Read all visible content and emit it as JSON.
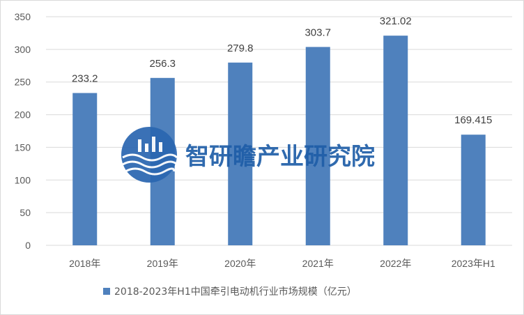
{
  "chart_data": {
    "type": "bar",
    "title": "",
    "xlabel": "",
    "ylabel": "",
    "categories": [
      "2018年",
      "2019年",
      "2020年",
      "2021年",
      "2022年",
      "2023年H1"
    ],
    "series": [
      {
        "name": "2018-2023年H1中国牵引电动机行业市场规模（亿元）",
        "values": [
          233.2,
          256.3,
          279.8,
          303.7,
          321.02,
          169.415
        ],
        "color": "#4f81bd"
      }
    ],
    "data_labels": [
      "233.2",
      "256.3",
      "279.8",
      "303.7",
      "321.02",
      "169.415"
    ],
    "yticks": [
      "0",
      "50",
      "100",
      "150",
      "200",
      "250",
      "300",
      "350"
    ],
    "ylim": [
      0,
      350
    ],
    "grid": true,
    "legend_position": "bottom",
    "gridline_color": "#d9d9d9",
    "watermark": {
      "text": "智研瞻产业研究院",
      "color": "#1f5ea8"
    }
  }
}
